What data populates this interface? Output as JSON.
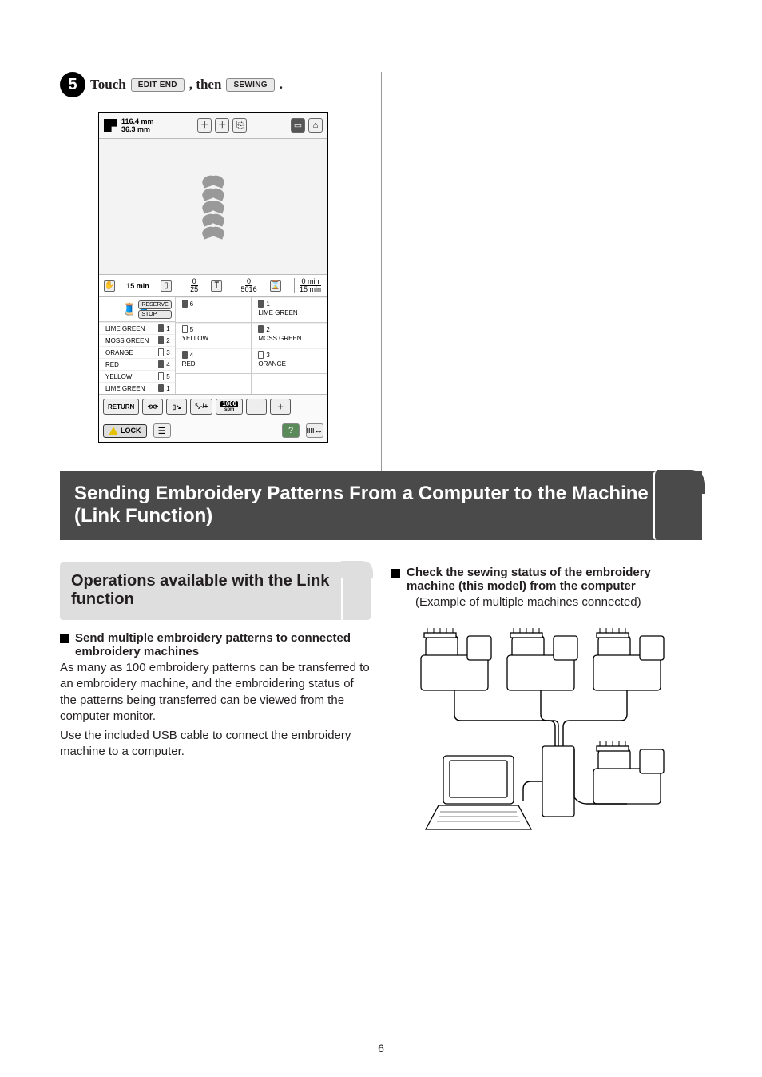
{
  "step": {
    "number": "5",
    "pre": "Touch ",
    "btn1": "EDIT END",
    "mid": " , then ",
    "btn2": "SEWING",
    "post": " ."
  },
  "lcd": {
    "height_mm": "116.4",
    "width_mm": "36.3",
    "mm_label": "mm",
    "status_time": "15 min",
    "progress_top": "0",
    "progress_bot": "25",
    "stitches_top": "0",
    "stitches_bot": "5016",
    "time_remaining_top": "0 min",
    "time_remaining_bot": "15 min",
    "reserve": "RESERVE",
    "stop": "STOP",
    "left": [
      {
        "name": "LIME GREEN",
        "n": "1",
        "filled": true
      },
      {
        "name": "MOSS GREEN",
        "n": "2",
        "filled": true
      },
      {
        "name": "ORANGE",
        "n": "3",
        "filled": false
      },
      {
        "name": "RED",
        "n": "4",
        "filled": true
      },
      {
        "name": "YELLOW",
        "n": "5",
        "filled": false
      },
      {
        "name": "LIME GREEN",
        "n": "1",
        "filled": true
      }
    ],
    "midcol": [
      {
        "n": "6",
        "name": "",
        "filled": true
      },
      {
        "n": "5",
        "name": "YELLOW",
        "filled": false
      },
      {
        "n": "4",
        "name": "RED",
        "filled": true
      }
    ],
    "rightcol": [
      {
        "n": "1",
        "name": "LIME GREEN",
        "filled": true
      },
      {
        "n": "2",
        "name": "MOSS GREEN",
        "filled": true
      },
      {
        "n": "3",
        "name": "ORANGE",
        "filled": false
      }
    ],
    "return_label": "RETURN",
    "spm_value": "1000",
    "spm_label": "spm",
    "lock_label": "LOCK"
  },
  "section_title": "Sending Embroidery Patterns From a Computer to the Machine (Link Function)",
  "subsection_title": "Operations available with the Link function",
  "left_block": {
    "heading": "Send multiple embroidery patterns to connected embroidery machines",
    "para1": "As many as 100 embroidery patterns can be transferred to an embroidery machine, and the embroidering status of the patterns being transferred can be viewed from the computer monitor.",
    "para2": "Use the included USB cable to connect the embroidery machine to a computer."
  },
  "right_block": {
    "heading": "Check the sewing status of the embroidery machine (this model) from the computer",
    "sub": "(Example of multiple machines connected)"
  },
  "page_number": "6",
  "colors": {
    "banner_bg": "#4a4a4a",
    "sub_banner_bg": "#dedede",
    "text": "#231f20"
  }
}
